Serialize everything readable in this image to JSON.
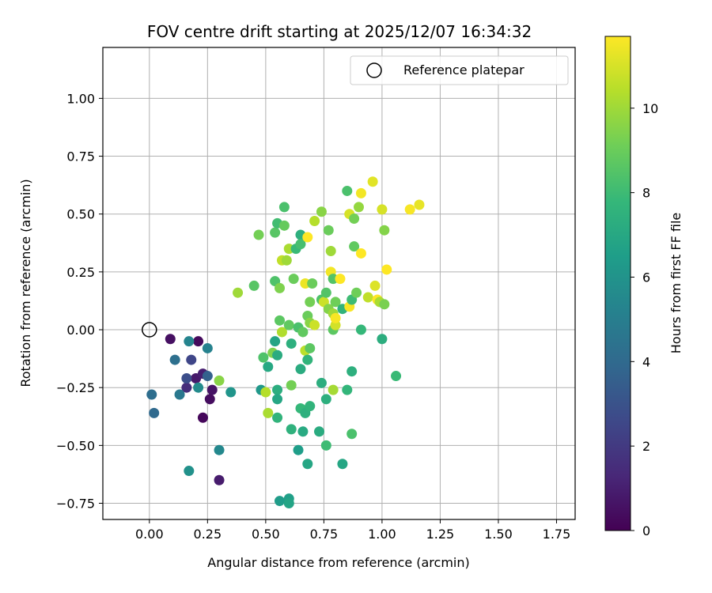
{
  "chart_data": {
    "type": "scatter",
    "title": "FOV centre drift starting at 2025/12/07 16:34:32",
    "xlabel": "Angular distance from reference (arcmin)",
    "ylabel": "Rotation from reference (arcmin)",
    "xlim": [
      -0.2,
      1.83
    ],
    "ylim": [
      -0.82,
      1.22
    ],
    "grid": true,
    "x_ticks": [
      0.0,
      0.25,
      0.5,
      0.75,
      1.0,
      1.25,
      1.5,
      1.75
    ],
    "x_tick_labels": [
      "0.00",
      "0.25",
      "0.50",
      "0.75",
      "1.00",
      "1.25",
      "1.50",
      "1.75"
    ],
    "y_ticks": [
      -0.75,
      -0.5,
      -0.25,
      0.0,
      0.25,
      0.5,
      0.75,
      1.0
    ],
    "y_tick_labels": [
      "−0.75",
      "−0.50",
      "−0.25",
      "0.00",
      "0.25",
      "0.50",
      "0.75",
      "1.00"
    ],
    "colorbar": {
      "label": "Hours from first FF file",
      "colormap": "viridis",
      "range": [
        0,
        11.7
      ],
      "ticks": [
        0,
        2,
        4,
        6,
        8,
        10
      ],
      "tick_labels": [
        "0",
        "2",
        "4",
        "6",
        "8",
        "10"
      ],
      "colormap_stops": [
        "#440154",
        "#482878",
        "#3e4989",
        "#31688e",
        "#26828e",
        "#1f9e89",
        "#35b779",
        "#6ece58",
        "#b5de2b",
        "#fde725"
      ]
    },
    "legend": {
      "label": "Reference platepar",
      "placement": "top-right"
    },
    "reference": {
      "x": 0.0,
      "y": 0.0
    },
    "points": [
      {
        "x": 0.09,
        "y": -0.04,
        "h": 0.5
      },
      {
        "x": 0.21,
        "y": -0.05,
        "h": 0.3
      },
      {
        "x": 0.2,
        "y": -0.21,
        "h": 0.8
      },
      {
        "x": 0.23,
        "y": -0.19,
        "h": 1.0
      },
      {
        "x": 0.27,
        "y": -0.26,
        "h": 0.6
      },
      {
        "x": 0.26,
        "y": -0.3,
        "h": 0.4
      },
      {
        "x": 0.23,
        "y": -0.38,
        "h": 0.2
      },
      {
        "x": 0.3,
        "y": -0.65,
        "h": 0.9
      },
      {
        "x": 0.16,
        "y": -0.25,
        "h": 1.5
      },
      {
        "x": 0.16,
        "y": -0.21,
        "h": 2.8
      },
      {
        "x": 0.18,
        "y": -0.13,
        "h": 2.5
      },
      {
        "x": 0.25,
        "y": -0.2,
        "h": 3.6
      },
      {
        "x": 0.11,
        "y": -0.13,
        "h": 4.3
      },
      {
        "x": 0.01,
        "y": -0.28,
        "h": 4.2
      },
      {
        "x": 0.02,
        "y": -0.36,
        "h": 4.0
      },
      {
        "x": 0.13,
        "y": -0.28,
        "h": 4.7
      },
      {
        "x": 0.17,
        "y": -0.05,
        "h": 5.3
      },
      {
        "x": 0.25,
        "y": -0.08,
        "h": 5.2
      },
      {
        "x": 0.21,
        "y": -0.25,
        "h": 5.6
      },
      {
        "x": 0.17,
        "y": -0.61,
        "h": 5.9
      },
      {
        "x": 0.3,
        "y": -0.52,
        "h": 5.5
      },
      {
        "x": 0.35,
        "y": -0.27,
        "h": 6.1
      },
      {
        "x": 0.3,
        "y": -0.22,
        "h": 9.6
      },
      {
        "x": 0.38,
        "y": 0.16,
        "h": 10.0
      },
      {
        "x": 0.45,
        "y": 0.19,
        "h": 8.6
      },
      {
        "x": 0.47,
        "y": 0.41,
        "h": 9.2
      },
      {
        "x": 0.48,
        "y": -0.26,
        "h": 6.2
      },
      {
        "x": 0.49,
        "y": -0.12,
        "h": 8.4
      },
      {
        "x": 0.5,
        "y": -0.27,
        "h": 10.4
      },
      {
        "x": 0.51,
        "y": -0.16,
        "h": 7.0
      },
      {
        "x": 0.51,
        "y": -0.36,
        "h": 10.2
      },
      {
        "x": 0.53,
        "y": -0.1,
        "h": 9.4
      },
      {
        "x": 0.54,
        "y": -0.05,
        "h": 6.8
      },
      {
        "x": 0.54,
        "y": 0.21,
        "h": 8.4
      },
      {
        "x": 0.54,
        "y": 0.42,
        "h": 8.6
      },
      {
        "x": 0.55,
        "y": 0.46,
        "h": 8.1
      },
      {
        "x": 0.55,
        "y": -0.11,
        "h": 7.2
      },
      {
        "x": 0.55,
        "y": -0.26,
        "h": 7.3
      },
      {
        "x": 0.55,
        "y": -0.3,
        "h": 6.9
      },
      {
        "x": 0.55,
        "y": -0.38,
        "h": 7.6
      },
      {
        "x": 0.56,
        "y": -0.74,
        "h": 6.4
      },
      {
        "x": 0.56,
        "y": 0.18,
        "h": 9.4
      },
      {
        "x": 0.56,
        "y": 0.04,
        "h": 8.7
      },
      {
        "x": 0.57,
        "y": -0.01,
        "h": 10.3
      },
      {
        "x": 0.57,
        "y": 0.3,
        "h": 10.6
      },
      {
        "x": 0.58,
        "y": 0.45,
        "h": 8.9
      },
      {
        "x": 0.58,
        "y": 0.53,
        "h": 8.3
      },
      {
        "x": 0.59,
        "y": 0.3,
        "h": 10.0
      },
      {
        "x": 0.6,
        "y": -0.73,
        "h": 6.6
      },
      {
        "x": 0.6,
        "y": -0.75,
        "h": 6.8
      },
      {
        "x": 0.6,
        "y": 0.02,
        "h": 8.8
      },
      {
        "x": 0.6,
        "y": 0.35,
        "h": 10.2
      },
      {
        "x": 0.61,
        "y": -0.24,
        "h": 9.2
      },
      {
        "x": 0.61,
        "y": -0.06,
        "h": 7.4
      },
      {
        "x": 0.61,
        "y": -0.43,
        "h": 7.5
      },
      {
        "x": 0.62,
        "y": 0.22,
        "h": 9.0
      },
      {
        "x": 0.63,
        "y": 0.35,
        "h": 7.9
      },
      {
        "x": 0.64,
        "y": -0.52,
        "h": 6.5
      },
      {
        "x": 0.64,
        "y": 0.01,
        "h": 8.3
      },
      {
        "x": 0.65,
        "y": -0.17,
        "h": 7.2
      },
      {
        "x": 0.65,
        "y": 0.41,
        "h": 7.4
      },
      {
        "x": 0.65,
        "y": 0.37,
        "h": 8.2
      },
      {
        "x": 0.65,
        "y": -0.34,
        "h": 7.8
      },
      {
        "x": 0.66,
        "y": -0.01,
        "h": 8.8
      },
      {
        "x": 0.66,
        "y": -0.44,
        "h": 7.1
      },
      {
        "x": 0.67,
        "y": -0.36,
        "h": 7.4
      },
      {
        "x": 0.67,
        "y": -0.09,
        "h": 10.5
      },
      {
        "x": 0.67,
        "y": 0.2,
        "h": 11.4
      },
      {
        "x": 0.68,
        "y": 0.4,
        "h": 11.7
      },
      {
        "x": 0.68,
        "y": 0.06,
        "h": 9.0
      },
      {
        "x": 0.68,
        "y": -0.13,
        "h": 7.6
      },
      {
        "x": 0.68,
        "y": -0.58,
        "h": 6.9
      },
      {
        "x": 0.69,
        "y": 0.03,
        "h": 9.6
      },
      {
        "x": 0.69,
        "y": 0.12,
        "h": 9.2
      },
      {
        "x": 0.69,
        "y": -0.08,
        "h": 8.7
      },
      {
        "x": 0.69,
        "y": -0.33,
        "h": 7.6
      },
      {
        "x": 0.7,
        "y": 0.2,
        "h": 9.0
      },
      {
        "x": 0.71,
        "y": 0.02,
        "h": 10.8
      },
      {
        "x": 0.71,
        "y": 0.47,
        "h": 10.4
      },
      {
        "x": 0.73,
        "y": -0.44,
        "h": 7.2
      },
      {
        "x": 0.74,
        "y": 0.51,
        "h": 9.6
      },
      {
        "x": 0.74,
        "y": -0.23,
        "h": 7.3
      },
      {
        "x": 0.74,
        "y": 0.13,
        "h": 8.4
      },
      {
        "x": 0.75,
        "y": 0.12,
        "h": 10.8
      },
      {
        "x": 0.76,
        "y": -0.3,
        "h": 7.4
      },
      {
        "x": 0.76,
        "y": -0.5,
        "h": 8.0
      },
      {
        "x": 0.76,
        "y": 0.16,
        "h": 8.5
      },
      {
        "x": 0.77,
        "y": 0.43,
        "h": 9.0
      },
      {
        "x": 0.77,
        "y": 0.09,
        "h": 9.5
      },
      {
        "x": 0.78,
        "y": 0.34,
        "h": 10.0
      },
      {
        "x": 0.78,
        "y": 0.25,
        "h": 11.5
      },
      {
        "x": 0.79,
        "y": 0.22,
        "h": 8.5
      },
      {
        "x": 0.79,
        "y": 0.0,
        "h": 8.7
      },
      {
        "x": 0.79,
        "y": 0.07,
        "h": 10.0
      },
      {
        "x": 0.79,
        "y": -0.26,
        "h": 10.1
      },
      {
        "x": 0.8,
        "y": 0.02,
        "h": 10.9
      },
      {
        "x": 0.8,
        "y": 0.12,
        "h": 9.1
      },
      {
        "x": 0.8,
        "y": 0.05,
        "h": 11.6
      },
      {
        "x": 0.82,
        "y": 0.22,
        "h": 11.8
      },
      {
        "x": 0.83,
        "y": 0.09,
        "h": 7.6
      },
      {
        "x": 0.83,
        "y": -0.58,
        "h": 6.9
      },
      {
        "x": 0.85,
        "y": 0.6,
        "h": 8.3
      },
      {
        "x": 0.85,
        "y": -0.26,
        "h": 7.7
      },
      {
        "x": 0.86,
        "y": 0.1,
        "h": 11.6
      },
      {
        "x": 0.86,
        "y": 0.5,
        "h": 11.0
      },
      {
        "x": 0.87,
        "y": 0.13,
        "h": 8.0
      },
      {
        "x": 0.87,
        "y": -0.18,
        "h": 7.4
      },
      {
        "x": 0.87,
        "y": -0.45,
        "h": 8.3
      },
      {
        "x": 0.88,
        "y": 0.48,
        "h": 9.2
      },
      {
        "x": 0.88,
        "y": 0.36,
        "h": 8.8
      },
      {
        "x": 0.89,
        "y": 0.16,
        "h": 9.1
      },
      {
        "x": 0.9,
        "y": 0.53,
        "h": 9.8
      },
      {
        "x": 0.91,
        "y": 0.59,
        "h": 11.5
      },
      {
        "x": 0.91,
        "y": 0.33,
        "h": 11.8
      },
      {
        "x": 0.91,
        "y": 0.0,
        "h": 7.8
      },
      {
        "x": 0.94,
        "y": 0.14,
        "h": 10.6
      },
      {
        "x": 0.96,
        "y": 0.64,
        "h": 11.2
      },
      {
        "x": 0.97,
        "y": 0.19,
        "h": 11.1
      },
      {
        "x": 0.98,
        "y": 0.13,
        "h": 11.9
      },
      {
        "x": 0.99,
        "y": 0.12,
        "h": 10.2
      },
      {
        "x": 1.0,
        "y": -0.04,
        "h": 7.3
      },
      {
        "x": 1.0,
        "y": 0.52,
        "h": 11.0
      },
      {
        "x": 1.01,
        "y": 0.11,
        "h": 9.3
      },
      {
        "x": 1.01,
        "y": 0.43,
        "h": 9.5
      },
      {
        "x": 1.02,
        "y": 0.26,
        "h": 11.8
      },
      {
        "x": 1.06,
        "y": -0.2,
        "h": 7.9
      },
      {
        "x": 1.12,
        "y": 0.52,
        "h": 11.6
      },
      {
        "x": 1.16,
        "y": 0.54,
        "h": 11.3
      }
    ]
  }
}
